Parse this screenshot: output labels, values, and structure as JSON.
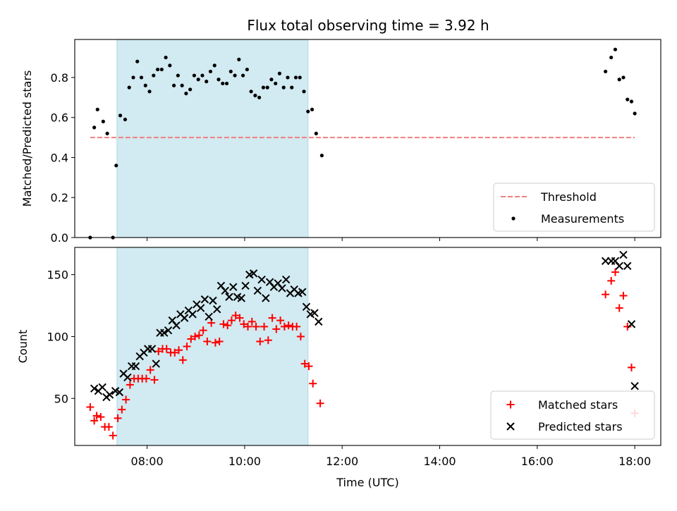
{
  "title": "Flux total observing time = 3.92 h",
  "colors": {
    "threshold": "#f08080",
    "measurement": "#000000",
    "matched": "#ff0000",
    "predicted": "#000000",
    "shade": "#add8e6"
  },
  "chart_data": [
    {
      "type": "scatter",
      "panel": "top",
      "ylabel": "Matched/Predicted stars",
      "xlabel": "",
      "ylim": [
        0.0,
        0.99
      ],
      "xlim": [
        "06:31",
        "18:32"
      ],
      "yticks": [
        0.0,
        0.2,
        0.4,
        0.6,
        0.8
      ],
      "ytick_labels": [
        "0.0",
        "0.2",
        "0.4",
        "0.6",
        "0.8"
      ],
      "xtick_labels": [],
      "shaded_span": [
        "07:23",
        "11:18"
      ],
      "legend": {
        "position": "lower right",
        "entries": [
          "Threshold",
          "Measurements"
        ]
      },
      "threshold": {
        "name": "Threshold",
        "y": 0.5,
        "x": [
          "06:50",
          "18:00"
        ],
        "style": "dashed"
      },
      "series": [
        {
          "name": "Measurements",
          "marker": "dot",
          "points": [
            [
              "06:50",
              0.0
            ],
            [
              "06:55",
              0.55
            ],
            [
              "06:59",
              0.64
            ],
            [
              "07:06",
              0.58
            ],
            [
              "07:11",
              0.52
            ],
            [
              "07:18",
              0.0
            ],
            [
              "07:22",
              0.36
            ],
            [
              "07:27",
              0.61
            ],
            [
              "07:33",
              0.59
            ],
            [
              "07:38",
              0.75
            ],
            [
              "07:43",
              0.8
            ],
            [
              "07:48",
              0.88
            ],
            [
              "07:53",
              0.8
            ],
            [
              "07:58",
              0.76
            ],
            [
              "08:03",
              0.73
            ],
            [
              "08:08",
              0.81
            ],
            [
              "08:13",
              0.84
            ],
            [
              "08:18",
              0.84
            ],
            [
              "08:23",
              0.9
            ],
            [
              "08:28",
              0.86
            ],
            [
              "08:33",
              0.76
            ],
            [
              "08:38",
              0.81
            ],
            [
              "08:43",
              0.76
            ],
            [
              "08:48",
              0.72
            ],
            [
              "08:53",
              0.74
            ],
            [
              "08:58",
              0.81
            ],
            [
              "09:03",
              0.79
            ],
            [
              "09:08",
              0.81
            ],
            [
              "09:13",
              0.78
            ],
            [
              "09:18",
              0.83
            ],
            [
              "09:23",
              0.86
            ],
            [
              "09:28",
              0.79
            ],
            [
              "09:33",
              0.77
            ],
            [
              "09:38",
              0.77
            ],
            [
              "09:43",
              0.83
            ],
            [
              "09:48",
              0.81
            ],
            [
              "09:53",
              0.89
            ],
            [
              "09:58",
              0.81
            ],
            [
              "10:03",
              0.84
            ],
            [
              "10:08",
              0.73
            ],
            [
              "10:13",
              0.71
            ],
            [
              "10:18",
              0.7
            ],
            [
              "10:23",
              0.75
            ],
            [
              "10:28",
              0.75
            ],
            [
              "10:33",
              0.79
            ],
            [
              "10:38",
              0.77
            ],
            [
              "10:43",
              0.82
            ],
            [
              "10:48",
              0.75
            ],
            [
              "10:53",
              0.8
            ],
            [
              "10:58",
              0.75
            ],
            [
              "11:03",
              0.8
            ],
            [
              "11:08",
              0.8
            ],
            [
              "11:13",
              0.73
            ],
            [
              "11:18",
              0.63
            ],
            [
              "11:23",
              0.64
            ],
            [
              "11:28",
              0.52
            ],
            [
              "11:35",
              0.41
            ],
            [
              "17:24",
              0.83
            ],
            [
              "17:31",
              0.9
            ],
            [
              "17:36",
              0.94
            ],
            [
              "17:41",
              0.79
            ],
            [
              "17:46",
              0.8
            ],
            [
              "17:51",
              0.69
            ],
            [
              "17:56",
              0.68
            ],
            [
              "18:00",
              0.62
            ]
          ]
        }
      ]
    },
    {
      "type": "scatter",
      "panel": "bottom",
      "ylabel": "Count",
      "xlabel": "Time (UTC)",
      "ylim": [
        12,
        172
      ],
      "xlim": [
        "06:31",
        "18:32"
      ],
      "yticks": [
        50,
        100,
        150
      ],
      "ytick_labels": [
        "50",
        "100",
        "150"
      ],
      "xticks": [
        "08:00",
        "10:00",
        "12:00",
        "14:00",
        "16:00",
        "18:00"
      ],
      "xtick_labels": [
        "08:00",
        "10:00",
        "12:00",
        "14:00",
        "16:00",
        "18:00"
      ],
      "shaded_span": [
        "07:23",
        "11:18"
      ],
      "legend": {
        "position": "lower right",
        "entries": [
          "Matched stars",
          "Predicted stars"
        ]
      },
      "series": [
        {
          "name": "Matched stars",
          "marker": "plus",
          "points": [
            [
              "06:50",
              43
            ],
            [
              "06:55",
              32
            ],
            [
              "06:58",
              36
            ],
            [
              "07:03",
              35
            ],
            [
              "07:08",
              27
            ],
            [
              "07:13",
              27
            ],
            [
              "07:18",
              20
            ],
            [
              "07:24",
              34
            ],
            [
              "07:29",
              41
            ],
            [
              "07:34",
              49
            ],
            [
              "07:39",
              61
            ],
            [
              "07:44",
              66
            ],
            [
              "07:49",
              66
            ],
            [
              "07:54",
              66
            ],
            [
              "07:59",
              66
            ],
            [
              "08:04",
              73
            ],
            [
              "08:09",
              65
            ],
            [
              "08:14",
              88
            ],
            [
              "08:19",
              90
            ],
            [
              "08:24",
              90
            ],
            [
              "08:29",
              87
            ],
            [
              "08:34",
              87
            ],
            [
              "08:39",
              89
            ],
            [
              "08:44",
              81
            ],
            [
              "08:49",
              92
            ],
            [
              "08:54",
              98
            ],
            [
              "08:59",
              100
            ],
            [
              "09:04",
              101
            ],
            [
              "09:09",
              105
            ],
            [
              "09:14",
              96
            ],
            [
              "09:19",
              111
            ],
            [
              "09:24",
              95
            ],
            [
              "09:29",
              96
            ],
            [
              "09:34",
              110
            ],
            [
              "09:39",
              109
            ],
            [
              "09:44",
              113
            ],
            [
              "09:49",
              117
            ],
            [
              "09:54",
              115
            ],
            [
              "09:59",
              110
            ],
            [
              "10:04",
              108
            ],
            [
              "10:09",
              112
            ],
            [
              "10:14",
              108
            ],
            [
              "10:19",
              96
            ],
            [
              "10:24",
              108
            ],
            [
              "10:29",
              97
            ],
            [
              "10:34",
              115
            ],
            [
              "10:39",
              106
            ],
            [
              "10:44",
              113
            ],
            [
              "10:49",
              108
            ],
            [
              "10:54",
              109
            ],
            [
              "10:59",
              108
            ],
            [
              "11:04",
              108
            ],
            [
              "11:09",
              100
            ],
            [
              "11:14",
              78
            ],
            [
              "11:19",
              76
            ],
            [
              "11:24",
              62
            ],
            [
              "11:33",
              46
            ],
            [
              "17:24",
              134
            ],
            [
              "17:31",
              145
            ],
            [
              "17:36",
              152
            ],
            [
              "17:41",
              123
            ],
            [
              "17:46",
              133
            ],
            [
              "17:51",
              108
            ],
            [
              "17:56",
              75
            ],
            [
              "18:00",
              38
            ]
          ]
        },
        {
          "name": "Predicted stars",
          "marker": "x",
          "points": [
            [
              "06:55",
              58
            ],
            [
              "07:00",
              56
            ],
            [
              "07:05",
              59
            ],
            [
              "07:10",
              51
            ],
            [
              "07:14",
              53
            ],
            [
              "07:21",
              56
            ],
            [
              "07:26",
              55
            ],
            [
              "07:31",
              70
            ],
            [
              "07:36",
              67
            ],
            [
              "07:41",
              76
            ],
            [
              "07:46",
              76
            ],
            [
              "07:51",
              84
            ],
            [
              "07:56",
              87
            ],
            [
              "08:01",
              90
            ],
            [
              "08:06",
              90
            ],
            [
              "08:11",
              78
            ],
            [
              "08:16",
              103
            ],
            [
              "08:21",
              103
            ],
            [
              "08:26",
              105
            ],
            [
              "08:31",
              113
            ],
            [
              "08:36",
              109
            ],
            [
              "08:41",
              118
            ],
            [
              "08:46",
              115
            ],
            [
              "08:51",
              121
            ],
            [
              "08:56",
              118
            ],
            [
              "09:01",
              126
            ],
            [
              "09:06",
              123
            ],
            [
              "09:11",
              130
            ],
            [
              "09:16",
              116
            ],
            [
              "09:21",
              129
            ],
            [
              "09:26",
              122
            ],
            [
              "09:31",
              141
            ],
            [
              "09:36",
              137
            ],
            [
              "09:41",
              132
            ],
            [
              "09:46",
              140
            ],
            [
              "09:51",
              132
            ],
            [
              "09:56",
              131
            ],
            [
              "10:01",
              141
            ],
            [
              "10:06",
              150
            ],
            [
              "10:11",
              151
            ],
            [
              "10:16",
              137
            ],
            [
              "10:21",
              146
            ],
            [
              "10:26",
              131
            ],
            [
              "10:31",
              144
            ],
            [
              "10:36",
              140
            ],
            [
              "10:41",
              143
            ],
            [
              "10:46",
              139
            ],
            [
              "10:51",
              146
            ],
            [
              "10:56",
              135
            ],
            [
              "11:01",
              138
            ],
            [
              "11:06",
              135
            ],
            [
              "11:11",
              136
            ],
            [
              "11:16",
              124
            ],
            [
              "11:21",
              118
            ],
            [
              "11:26",
              119
            ],
            [
              "11:31",
              112
            ],
            [
              "17:24",
              161
            ],
            [
              "17:31",
              161
            ],
            [
              "17:36",
              161
            ],
            [
              "17:41",
              157
            ],
            [
              "17:46",
              166
            ],
            [
              "17:51",
              157
            ],
            [
              "17:56",
              110
            ],
            [
              "18:00",
              60
            ]
          ]
        }
      ]
    }
  ]
}
